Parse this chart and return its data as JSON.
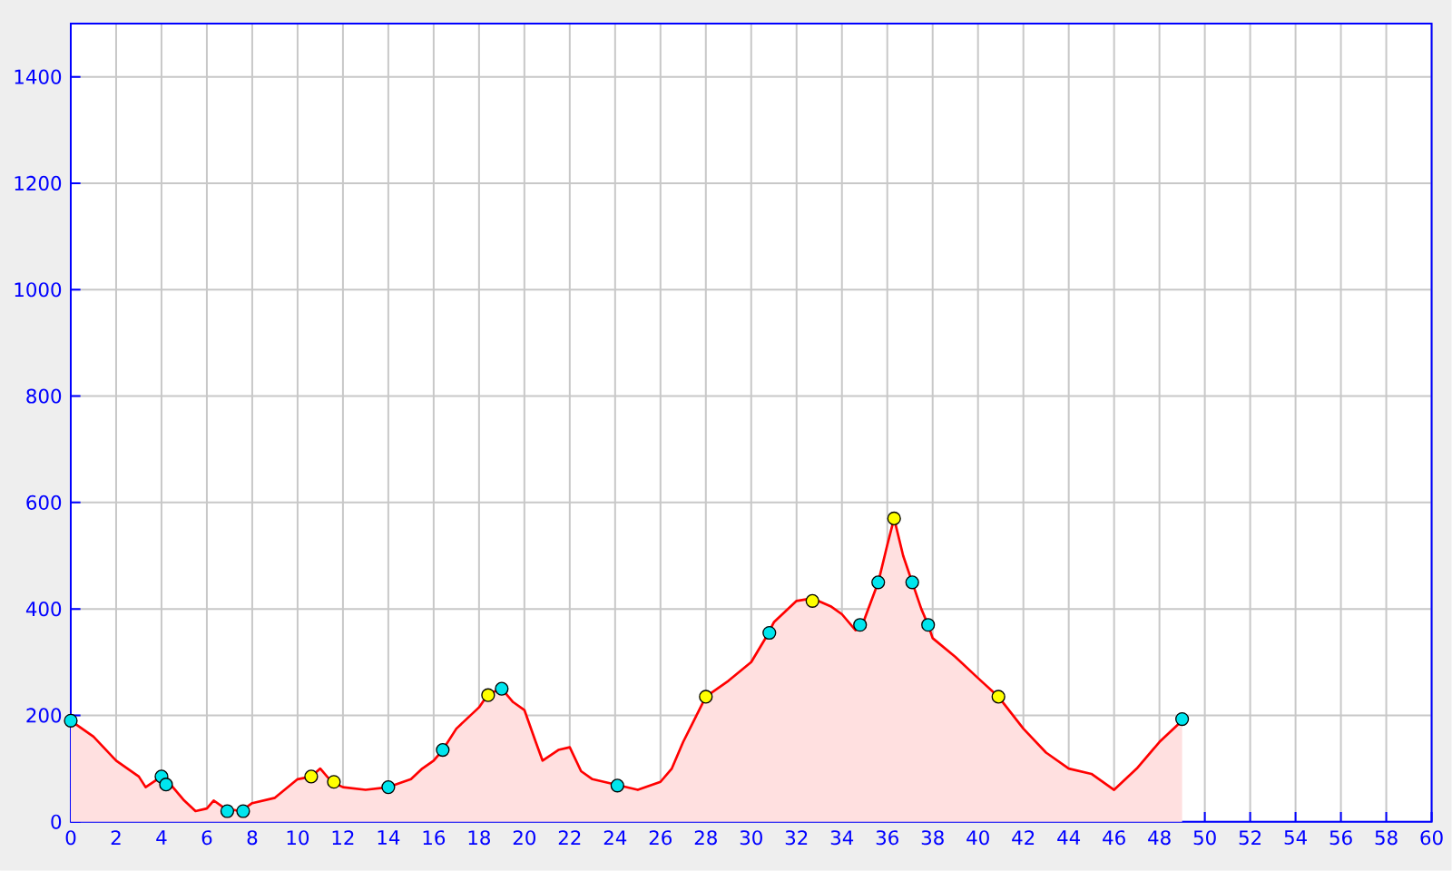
{
  "chart_data": {
    "type": "area",
    "xlim": [
      0,
      60
    ],
    "ylim": [
      0,
      1500
    ],
    "xticks": [
      0,
      2,
      4,
      6,
      8,
      10,
      12,
      14,
      16,
      18,
      20,
      22,
      24,
      26,
      28,
      30,
      32,
      34,
      36,
      38,
      40,
      42,
      44,
      46,
      48,
      50,
      52,
      54,
      56,
      58,
      60
    ],
    "yticks": [
      0,
      200,
      400,
      600,
      800,
      1000,
      1200,
      1400
    ],
    "grid": true,
    "series": [
      {
        "color": "#ff0000",
        "marker": "none",
        "x": [
          0,
          1,
          2,
          3,
          3.3,
          4,
          4.4,
          5,
          5.5,
          6,
          6.3,
          6.8,
          7.5,
          8,
          9,
          10,
          10.6,
          11,
          11.5,
          12,
          13,
          14,
          15,
          15.5,
          16,
          16.4,
          17,
          18,
          18.4,
          19,
          19.5,
          20,
          20.5,
          20.8,
          21.5,
          22,
          22.5,
          23,
          24,
          25,
          26,
          26.5,
          27,
          28,
          29,
          30,
          30.7,
          31,
          31.5,
          32,
          32.7,
          33.5,
          34,
          34.6,
          34.9,
          35.6,
          36,
          36.3,
          36.7,
          37.1,
          37.5,
          37.8,
          38,
          39,
          40,
          40.9,
          42,
          43,
          44,
          45,
          46,
          47,
          48,
          49
        ],
        "values": [
          190,
          160,
          115,
          85,
          65,
          85,
          70,
          40,
          20,
          25,
          40,
          25,
          20,
          35,
          45,
          80,
          85,
          100,
          75,
          65,
          60,
          65,
          80,
          100,
          115,
          135,
          175,
          215,
          240,
          250,
          225,
          210,
          150,
          115,
          135,
          140,
          95,
          80,
          70,
          60,
          75,
          100,
          150,
          235,
          265,
          300,
          350,
          375,
          395,
          415,
          420,
          405,
          390,
          360,
          370,
          450,
          520,
          570,
          500,
          450,
          400,
          370,
          345,
          310,
          270,
          235,
          175,
          130,
          100,
          90,
          60,
          100,
          150,
          190
        ]
      },
      {
        "type": "scatter",
        "color": "#00e5ee",
        "marker": "circle",
        "x": [
          0,
          4,
          4.2,
          6.9,
          7.6,
          14,
          16.4,
          19,
          24.1,
          30.8,
          34.8,
          35.6,
          37.1,
          37.8,
          49
        ],
        "values": [
          190,
          85,
          70,
          20,
          20,
          65,
          135,
          250,
          68,
          355,
          370,
          450,
          450,
          370,
          193
        ]
      },
      {
        "type": "scatter",
        "color": "#ffff00",
        "marker": "circle",
        "x": [
          10.6,
          11.6,
          18.4,
          28,
          32.7,
          36.3,
          40.9
        ],
        "values": [
          85,
          75,
          238,
          235,
          415,
          570,
          235
        ]
      }
    ]
  }
}
